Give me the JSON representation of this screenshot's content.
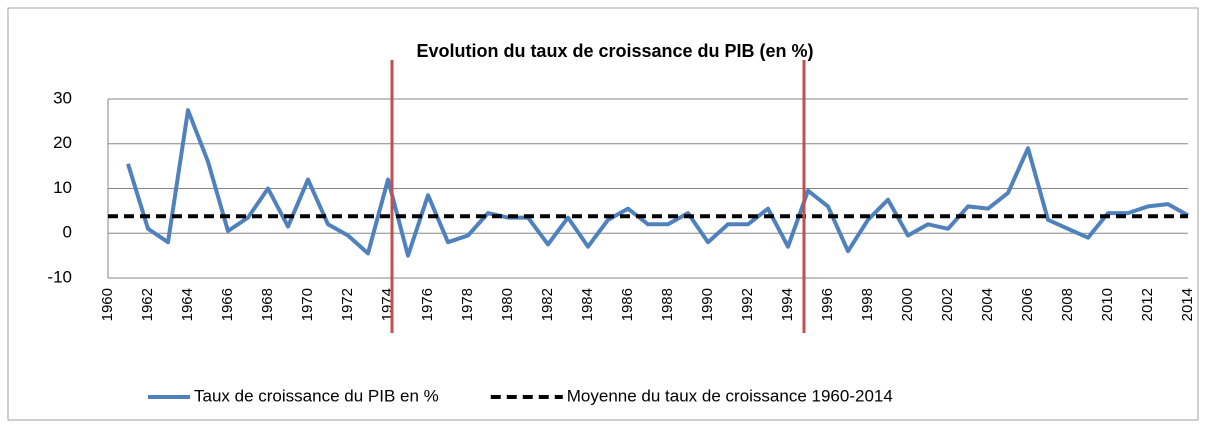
{
  "chart_data": {
    "type": "line",
    "title": "Evolution du taux de croissance du PIB (en %)",
    "x": [
      1961,
      1962,
      1963,
      1964,
      1965,
      1966,
      1967,
      1968,
      1969,
      1970,
      1971,
      1972,
      1973,
      1974,
      1975,
      1976,
      1977,
      1978,
      1979,
      1980,
      1981,
      1982,
      1983,
      1984,
      1985,
      1986,
      1987,
      1988,
      1989,
      1990,
      1991,
      1992,
      1993,
      1994,
      1995,
      1996,
      1997,
      1998,
      1999,
      2000,
      2001,
      2002,
      2003,
      2004,
      2005,
      2006,
      2007,
      2008,
      2009,
      2010,
      2011,
      2012,
      2013,
      2014
    ],
    "series": [
      {
        "name": "Taux de croissance du PIB en %",
        "color": "#4f81bd",
        "values": [
          15.5,
          1,
          -2,
          27.5,
          16,
          0.5,
          3.5,
          10,
          1.5,
          12,
          2,
          -0.5,
          -4.5,
          12,
          -5,
          8.5,
          -2,
          -0.5,
          4.5,
          3.5,
          3.5,
          -2.5,
          3.5,
          -3,
          3,
          5.5,
          2,
          2,
          4.5,
          -2,
          2,
          2,
          5.5,
          -3,
          9.5,
          6,
          -4,
          3,
          7.5,
          -0.5,
          2,
          1,
          6,
          5.5,
          9,
          19,
          3,
          1,
          -1,
          4.5,
          4.5,
          6,
          6.5,
          4
        ]
      }
    ],
    "reference_lines": [
      {
        "name": "Moyenne du taux de croissance 1960-2014",
        "value": 3.8,
        "color": "#000000",
        "dashed": true
      }
    ],
    "vertical_lines": [
      {
        "x": 1974.2,
        "color": "#c0504d"
      },
      {
        "x": 1994.8,
        "color": "#c0504d"
      }
    ],
    "xlim": [
      1960,
      2014
    ],
    "xticks": [
      1960,
      1962,
      1964,
      1966,
      1968,
      1970,
      1972,
      1974,
      1976,
      1978,
      1980,
      1982,
      1984,
      1986,
      1988,
      1990,
      1992,
      1994,
      1996,
      1998,
      2000,
      2002,
      2004,
      2006,
      2008,
      2010,
      2012,
      2014
    ],
    "ylim": [
      -10,
      30
    ],
    "yticks": [
      -10,
      0,
      10,
      20,
      30
    ],
    "grid": true,
    "legend": "bottom"
  }
}
